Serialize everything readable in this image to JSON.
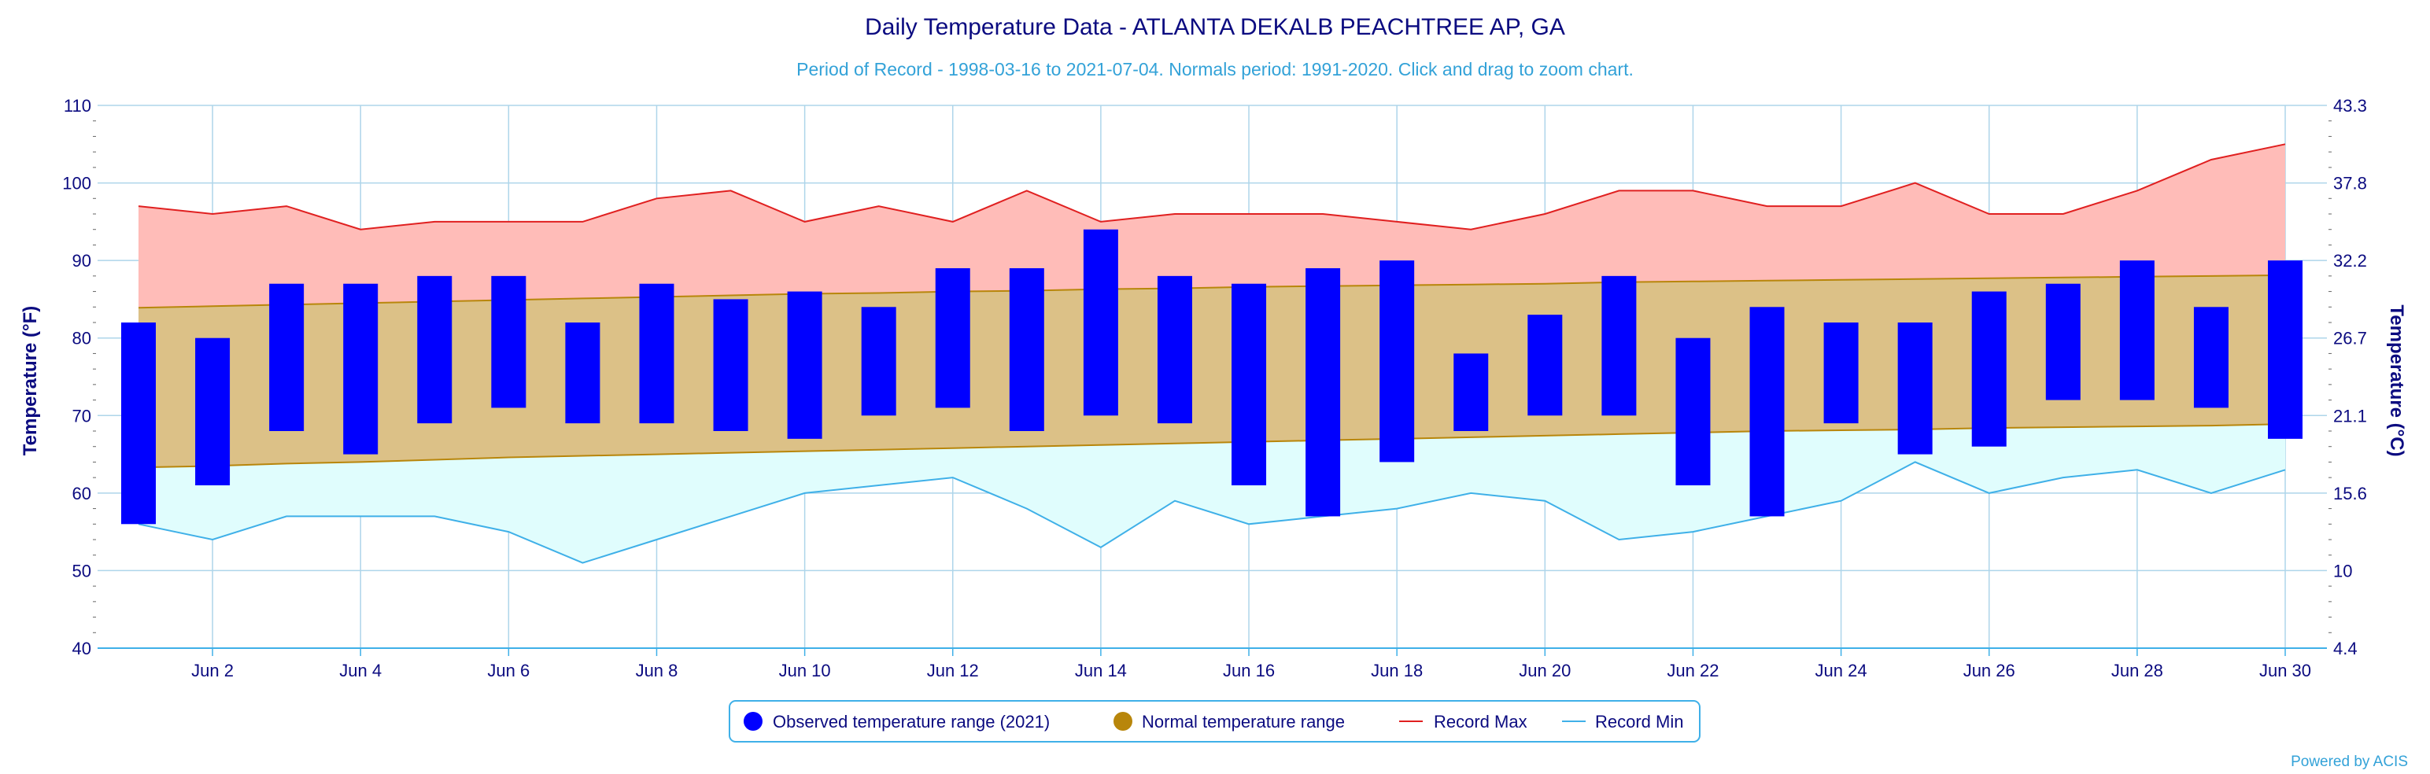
{
  "chart_data": {
    "type": "bar",
    "title": "Daily Temperature Data - ATLANTA DEKALB PEACHTREE AP, GA",
    "subtitle": "Period of Record - 1998-03-16 to 2021-07-04. Normals period: 1991-2020. Click and drag to zoom chart.",
    "ylabel": "Temperature (°F)",
    "ylabel_right": "Temperature (°C)",
    "ylim": [
      40,
      110
    ],
    "y_ticks": [
      "40",
      "50",
      "60",
      "70",
      "80",
      "90",
      "100",
      "110"
    ],
    "y_ticks_right": [
      "4.4",
      "10",
      "15.6",
      "21.1",
      "26.7",
      "32.2",
      "37.8",
      "43.3"
    ],
    "days": [
      1,
      2,
      3,
      4,
      5,
      6,
      7,
      8,
      9,
      10,
      11,
      12,
      13,
      14,
      15,
      16,
      17,
      18,
      19,
      20,
      21,
      22,
      23,
      24,
      25,
      26,
      27,
      28,
      29,
      30
    ],
    "x_tick_labels": [
      "Jun 2",
      "Jun 4",
      "Jun 6",
      "Jun 8",
      "Jun 10",
      "Jun 12",
      "Jun 14",
      "Jun 16",
      "Jun 18",
      "Jun 20",
      "Jun 22",
      "Jun 24",
      "Jun 26",
      "Jun 28",
      "Jun 30"
    ],
    "grid": true,
    "legend_position": "bottom-center",
    "colors": {
      "observed": "#0000ff",
      "normal_fill": "#dcc187",
      "normal_line": "#b8860b",
      "record_max_fill": "#ffbcb8",
      "record_max_line": "#e02020",
      "record_min_fill": "#e0fdfd",
      "record_min_line": "#3fb0e8",
      "grid": "#aed5ea"
    },
    "series": [
      {
        "name": "Observed temperature range (2021)",
        "low": [
          56,
          61,
          68,
          65,
          69,
          71,
          69,
          69,
          68,
          67,
          70,
          71,
          68,
          70,
          69,
          61,
          57,
          64,
          68,
          70,
          70,
          61,
          57,
          69,
          65,
          66,
          72,
          72,
          71,
          67
        ],
        "high": [
          82,
          80,
          87,
          87,
          88,
          88,
          82,
          87,
          85,
          86,
          84,
          89,
          89,
          94,
          88,
          87,
          89,
          90,
          78,
          83,
          88,
          80,
          84,
          82,
          82,
          86,
          87,
          90,
          84,
          90
        ]
      },
      {
        "name": "Normal temperature range",
        "low": [
          63.3,
          63.5,
          63.8,
          64.0,
          64.3,
          64.6,
          64.8,
          65.0,
          65.2,
          65.4,
          65.6,
          65.8,
          66.0,
          66.2,
          66.4,
          66.6,
          66.8,
          67.0,
          67.2,
          67.4,
          67.6,
          67.8,
          68.0,
          68.1,
          68.2,
          68.4,
          68.5,
          68.6,
          68.7,
          68.9
        ],
        "high": [
          83.9,
          84.1,
          84.3,
          84.5,
          84.7,
          84.9,
          85.1,
          85.3,
          85.5,
          85.7,
          85.8,
          86.0,
          86.1,
          86.3,
          86.4,
          86.6,
          86.7,
          86.8,
          86.9,
          87.0,
          87.2,
          87.3,
          87.4,
          87.5,
          87.6,
          87.7,
          87.8,
          87.9,
          88.0,
          88.1
        ]
      },
      {
        "name": "Record Max",
        "values": [
          97,
          96,
          97,
          94,
          95,
          95,
          95,
          98,
          99,
          95,
          97,
          95,
          99,
          95,
          96,
          96,
          96,
          95,
          94,
          96,
          99,
          99,
          97,
          97,
          100,
          96,
          96,
          99,
          103,
          105
        ]
      },
      {
        "name": "Record Min",
        "values": [
          56,
          54,
          57,
          57,
          57,
          55,
          51,
          54,
          57,
          60,
          61,
          62,
          58,
          53,
          59,
          56,
          57,
          58,
          60,
          59,
          54,
          55,
          57,
          59,
          64,
          60,
          62,
          63,
          60,
          63
        ]
      }
    ]
  },
  "credit": "Powered by ACIS"
}
